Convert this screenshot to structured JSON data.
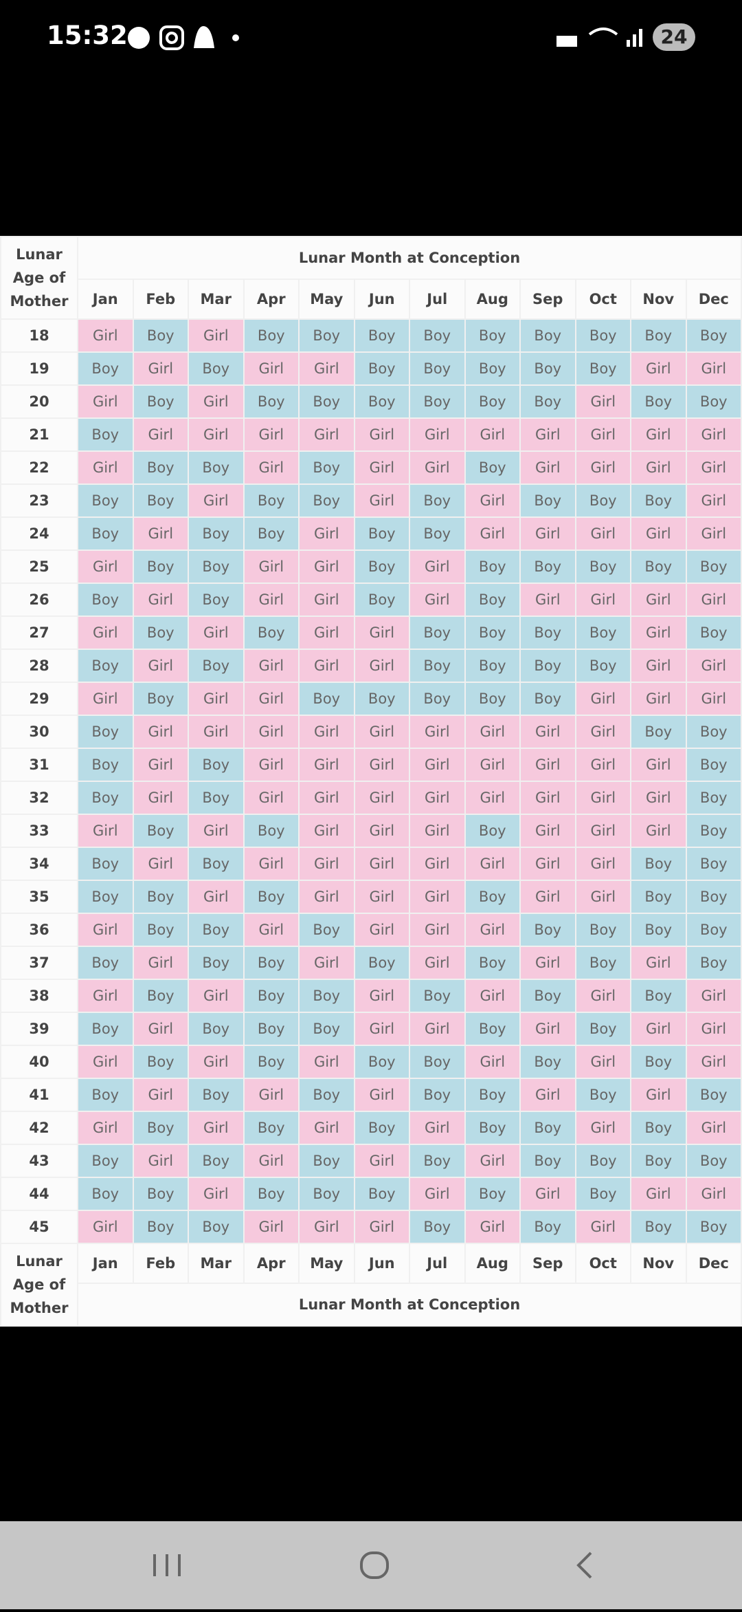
{
  "status_bar": {
    "time": "15:32",
    "battery": "24"
  },
  "table": {
    "header_title": "Lunar Month at Conception",
    "corner_label": "Lunar Age of Mother",
    "months": [
      "Jan",
      "Feb",
      "Mar",
      "Apr",
      "May",
      "Jun",
      "Jul",
      "Aug",
      "Sep",
      "Oct",
      "Nov",
      "Dec"
    ],
    "rows": [
      {
        "age": 18,
        "cells": [
          "Girl",
          "Boy",
          "Girl",
          "Boy",
          "Boy",
          "Boy",
          "Boy",
          "Boy",
          "Boy",
          "Boy",
          "Boy",
          "Boy"
        ]
      },
      {
        "age": 19,
        "cells": [
          "Boy",
          "Girl",
          "Boy",
          "Girl",
          "Girl",
          "Boy",
          "Boy",
          "Boy",
          "Boy",
          "Boy",
          "Girl",
          "Girl"
        ]
      },
      {
        "age": 20,
        "cells": [
          "Girl",
          "Boy",
          "Girl",
          "Boy",
          "Boy",
          "Boy",
          "Boy",
          "Boy",
          "Boy",
          "Girl",
          "Boy",
          "Boy"
        ]
      },
      {
        "age": 21,
        "cells": [
          "Boy",
          "Girl",
          "Girl",
          "Girl",
          "Girl",
          "Girl",
          "Girl",
          "Girl",
          "Girl",
          "Girl",
          "Girl",
          "Girl"
        ]
      },
      {
        "age": 22,
        "cells": [
          "Girl",
          "Boy",
          "Boy",
          "Girl",
          "Boy",
          "Girl",
          "Girl",
          "Boy",
          "Girl",
          "Girl",
          "Girl",
          "Girl"
        ]
      },
      {
        "age": 23,
        "cells": [
          "Boy",
          "Boy",
          "Girl",
          "Boy",
          "Boy",
          "Girl",
          "Boy",
          "Girl",
          "Boy",
          "Boy",
          "Boy",
          "Girl"
        ]
      },
      {
        "age": 24,
        "cells": [
          "Boy",
          "Girl",
          "Boy",
          "Boy",
          "Girl",
          "Boy",
          "Boy",
          "Girl",
          "Girl",
          "Girl",
          "Girl",
          "Girl"
        ]
      },
      {
        "age": 25,
        "cells": [
          "Girl",
          "Boy",
          "Boy",
          "Girl",
          "Girl",
          "Boy",
          "Girl",
          "Boy",
          "Boy",
          "Boy",
          "Boy",
          "Boy"
        ]
      },
      {
        "age": 26,
        "cells": [
          "Boy",
          "Girl",
          "Boy",
          "Girl",
          "Girl",
          "Boy",
          "Girl",
          "Boy",
          "Girl",
          "Girl",
          "Girl",
          "Girl"
        ]
      },
      {
        "age": 27,
        "cells": [
          "Girl",
          "Boy",
          "Girl",
          "Boy",
          "Girl",
          "Girl",
          "Boy",
          "Boy",
          "Boy",
          "Boy",
          "Girl",
          "Boy"
        ]
      },
      {
        "age": 28,
        "cells": [
          "Boy",
          "Girl",
          "Boy",
          "Girl",
          "Girl",
          "Girl",
          "Boy",
          "Boy",
          "Boy",
          "Boy",
          "Girl",
          "Girl"
        ]
      },
      {
        "age": 29,
        "cells": [
          "Girl",
          "Boy",
          "Girl",
          "Girl",
          "Boy",
          "Boy",
          "Boy",
          "Boy",
          "Boy",
          "Girl",
          "Girl",
          "Girl"
        ]
      },
      {
        "age": 30,
        "cells": [
          "Boy",
          "Girl",
          "Girl",
          "Girl",
          "Girl",
          "Girl",
          "Girl",
          "Girl",
          "Girl",
          "Girl",
          "Boy",
          "Boy"
        ]
      },
      {
        "age": 31,
        "cells": [
          "Boy",
          "Girl",
          "Boy",
          "Girl",
          "Girl",
          "Girl",
          "Girl",
          "Girl",
          "Girl",
          "Girl",
          "Girl",
          "Boy"
        ]
      },
      {
        "age": 32,
        "cells": [
          "Boy",
          "Girl",
          "Boy",
          "Girl",
          "Girl",
          "Girl",
          "Girl",
          "Girl",
          "Girl",
          "Girl",
          "Girl",
          "Boy"
        ]
      },
      {
        "age": 33,
        "cells": [
          "Girl",
          "Boy",
          "Girl",
          "Boy",
          "Girl",
          "Girl",
          "Girl",
          "Boy",
          "Girl",
          "Girl",
          "Girl",
          "Boy"
        ]
      },
      {
        "age": 34,
        "cells": [
          "Boy",
          "Girl",
          "Boy",
          "Girl",
          "Girl",
          "Girl",
          "Girl",
          "Girl",
          "Girl",
          "Girl",
          "Boy",
          "Boy"
        ]
      },
      {
        "age": 35,
        "cells": [
          "Boy",
          "Boy",
          "Girl",
          "Boy",
          "Girl",
          "Girl",
          "Girl",
          "Boy",
          "Girl",
          "Girl",
          "Boy",
          "Boy"
        ]
      },
      {
        "age": 36,
        "cells": [
          "Girl",
          "Boy",
          "Boy",
          "Girl",
          "Boy",
          "Girl",
          "Girl",
          "Girl",
          "Boy",
          "Boy",
          "Boy",
          "Boy"
        ]
      },
      {
        "age": 37,
        "cells": [
          "Boy",
          "Girl",
          "Boy",
          "Boy",
          "Girl",
          "Boy",
          "Girl",
          "Boy",
          "Girl",
          "Boy",
          "Girl",
          "Boy"
        ]
      },
      {
        "age": 38,
        "cells": [
          "Girl",
          "Boy",
          "Girl",
          "Boy",
          "Boy",
          "Girl",
          "Boy",
          "Girl",
          "Boy",
          "Girl",
          "Boy",
          "Girl"
        ]
      },
      {
        "age": 39,
        "cells": [
          "Boy",
          "Girl",
          "Boy",
          "Boy",
          "Boy",
          "Girl",
          "Girl",
          "Boy",
          "Girl",
          "Boy",
          "Girl",
          "Girl"
        ]
      },
      {
        "age": 40,
        "cells": [
          "Girl",
          "Boy",
          "Girl",
          "Boy",
          "Girl",
          "Boy",
          "Boy",
          "Girl",
          "Boy",
          "Girl",
          "Boy",
          "Girl"
        ]
      },
      {
        "age": 41,
        "cells": [
          "Boy",
          "Girl",
          "Boy",
          "Girl",
          "Boy",
          "Girl",
          "Boy",
          "Boy",
          "Girl",
          "Boy",
          "Girl",
          "Boy"
        ]
      },
      {
        "age": 42,
        "cells": [
          "Girl",
          "Boy",
          "Girl",
          "Boy",
          "Girl",
          "Boy",
          "Girl",
          "Boy",
          "Boy",
          "Girl",
          "Boy",
          "Girl"
        ]
      },
      {
        "age": 43,
        "cells": [
          "Boy",
          "Girl",
          "Boy",
          "Girl",
          "Boy",
          "Girl",
          "Boy",
          "Girl",
          "Boy",
          "Boy",
          "Boy",
          "Boy"
        ]
      },
      {
        "age": 44,
        "cells": [
          "Boy",
          "Boy",
          "Girl",
          "Boy",
          "Boy",
          "Boy",
          "Girl",
          "Boy",
          "Girl",
          "Boy",
          "Girl",
          "Girl"
        ]
      },
      {
        "age": 45,
        "cells": [
          "Girl",
          "Boy",
          "Boy",
          "Girl",
          "Girl",
          "Girl",
          "Boy",
          "Girl",
          "Boy",
          "Girl",
          "Boy",
          "Boy"
        ]
      }
    ]
  }
}
